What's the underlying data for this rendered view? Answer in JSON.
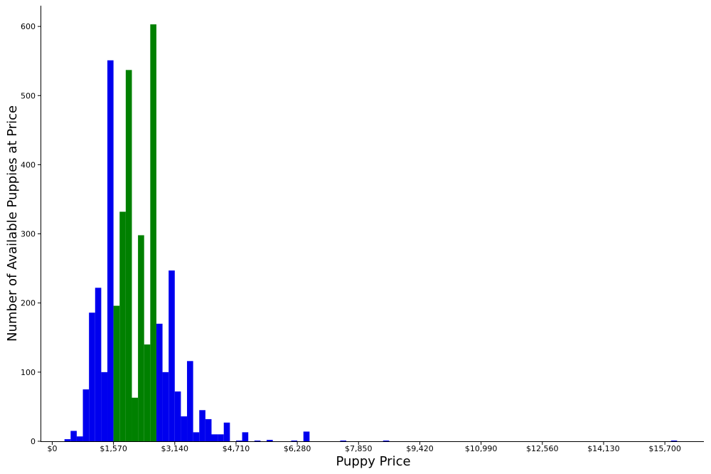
{
  "chart_data": {
    "type": "bar",
    "title": "",
    "xlabel": "Puppy Price",
    "ylabel": "Number of Available Puppies at Price",
    "xlim": [
      -300,
      16700
    ],
    "ylim": [
      0,
      630
    ],
    "grid": false,
    "legend": "none",
    "x_ticks": [
      0,
      1570,
      3140,
      4710,
      6280,
      7850,
      9420,
      10990,
      12560,
      14130,
      15700
    ],
    "x_tick_labels": [
      "$0",
      "$1,570",
      "$3,140",
      "$4,710",
      "$6,280",
      "$7,850",
      "$9,420",
      "$10,990",
      "$12,560",
      "$14,130",
      "$15,700"
    ],
    "y_ticks": [
      0,
      100,
      200,
      300,
      400,
      500,
      600
    ],
    "y_tick_labels": [
      "0",
      "100",
      "200",
      "300",
      "400",
      "500",
      "600"
    ],
    "bin_width": 157,
    "colors": {
      "outer": "#0000ee",
      "middle": "#008000"
    },
    "bins": [
      {
        "x": 314,
        "value": 3,
        "group": "outer"
      },
      {
        "x": 471,
        "value": 15,
        "group": "outer"
      },
      {
        "x": 628,
        "value": 7,
        "group": "outer"
      },
      {
        "x": 785,
        "value": 75,
        "group": "outer"
      },
      {
        "x": 942,
        "value": 186,
        "group": "outer"
      },
      {
        "x": 1099,
        "value": 222,
        "group": "outer"
      },
      {
        "x": 1256,
        "value": 100,
        "group": "outer"
      },
      {
        "x": 1413,
        "value": 551,
        "group": "outer"
      },
      {
        "x": 1570,
        "value": 196,
        "group": "middle"
      },
      {
        "x": 1727,
        "value": 332,
        "group": "middle"
      },
      {
        "x": 1884,
        "value": 537,
        "group": "middle"
      },
      {
        "x": 2041,
        "value": 63,
        "group": "middle"
      },
      {
        "x": 2198,
        "value": 298,
        "group": "middle"
      },
      {
        "x": 2355,
        "value": 140,
        "group": "middle"
      },
      {
        "x": 2512,
        "value": 603,
        "group": "middle"
      },
      {
        "x": 2669,
        "value": 170,
        "group": "outer"
      },
      {
        "x": 2826,
        "value": 100,
        "group": "outer"
      },
      {
        "x": 2983,
        "value": 247,
        "group": "outer"
      },
      {
        "x": 3140,
        "value": 72,
        "group": "outer"
      },
      {
        "x": 3297,
        "value": 36,
        "group": "outer"
      },
      {
        "x": 3454,
        "value": 116,
        "group": "outer"
      },
      {
        "x": 3611,
        "value": 13,
        "group": "outer"
      },
      {
        "x": 3768,
        "value": 45,
        "group": "outer"
      },
      {
        "x": 3925,
        "value": 32,
        "group": "outer"
      },
      {
        "x": 4082,
        "value": 10,
        "group": "outer"
      },
      {
        "x": 4239,
        "value": 10,
        "group": "outer"
      },
      {
        "x": 4396,
        "value": 27,
        "group": "outer"
      },
      {
        "x": 4710,
        "value": 1,
        "group": "outer"
      },
      {
        "x": 4867,
        "value": 13,
        "group": "outer"
      },
      {
        "x": 5181,
        "value": 1,
        "group": "outer"
      },
      {
        "x": 5495,
        "value": 2,
        "group": "outer"
      },
      {
        "x": 6123,
        "value": 1,
        "group": "outer"
      },
      {
        "x": 6437,
        "value": 14,
        "group": "outer"
      },
      {
        "x": 7379,
        "value": 1,
        "group": "outer"
      },
      {
        "x": 8478,
        "value": 1,
        "group": "outer"
      },
      {
        "x": 15857,
        "value": 1,
        "group": "outer"
      }
    ]
  }
}
